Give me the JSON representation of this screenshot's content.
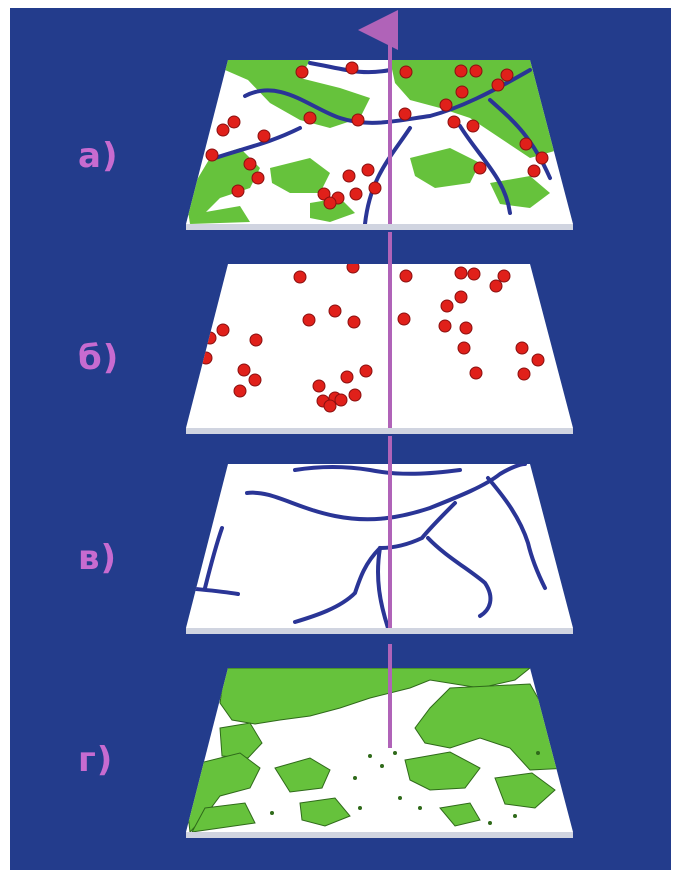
{
  "diagram": {
    "colors": {
      "background": "#233c8c",
      "plane": "#ffffff",
      "vegetation": "#66c23c",
      "rivers": "#2a3596",
      "points": "#e0201a",
      "points_outline": "#8a1010",
      "axis": "#b063b8",
      "labels": "#c76bd0"
    },
    "layers": [
      {
        "label": "а)",
        "content": [
          "vegetation",
          "rivers",
          "points"
        ]
      },
      {
        "label": "б)",
        "content": [
          "points"
        ]
      },
      {
        "label": "в)",
        "content": [
          "rivers"
        ]
      },
      {
        "label": "г)",
        "content": [
          "vegetation"
        ]
      }
    ]
  }
}
